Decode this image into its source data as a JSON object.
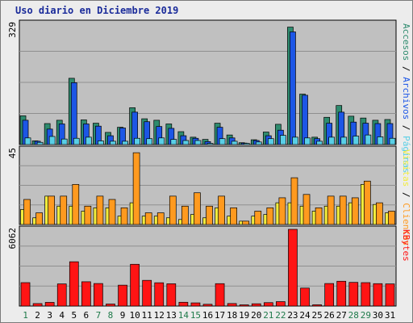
{
  "chart_data": {
    "type": "bar",
    "title": "Uso diario en Diciembre 2019",
    "categories": [
      "1",
      "2",
      "3",
      "4",
      "5",
      "6",
      "7",
      "8",
      "9",
      "10",
      "11",
      "12",
      "13",
      "14",
      "15",
      "16",
      "17",
      "18",
      "19",
      "20",
      "21",
      "22",
      "23",
      "24",
      "25",
      "26",
      "27",
      "28",
      "29",
      "30",
      "31"
    ],
    "weekend_days": [
      1,
      7,
      8,
      14,
      15,
      21,
      22,
      28,
      29
    ],
    "panels": [
      {
        "id": "hits",
        "ymax_label": "329",
        "ymax": 329,
        "series": [
          {
            "name": "Accesos",
            "color": "#2e8b6e",
            "values": [
              78,
              10,
              57,
              66,
              180,
              67,
              58,
              33,
              47,
              100,
              70,
              66,
              56,
              35,
              20,
              14,
              58,
              26,
              5,
              13,
              34,
              55,
              319,
              137,
              20,
              74,
              106,
              77,
              72,
              66,
              68
            ]
          },
          {
            "name": "Archivos",
            "color": "#1c56e6",
            "values": [
              66,
              9,
              42,
              56,
              168,
              56,
              50,
              24,
              45,
              88,
              62,
              49,
              44,
              24,
              17,
              8,
              47,
              18,
              4,
              11,
              24,
              39,
              306,
              134,
              16,
              58,
              88,
              61,
              58,
              57,
              57
            ]
          },
          {
            "name": "Páginas",
            "color": "#59cfe6",
            "values": [
              18,
              6,
              22,
              15,
              17,
              20,
              10,
              9,
              9,
              17,
              16,
              18,
              14,
              11,
              11,
              3,
              16,
              9,
              2,
              7,
              16,
              25,
              20,
              18,
              9,
              20,
              20,
              23,
              26,
              21,
              17
            ]
          }
        ]
      },
      {
        "id": "visits",
        "ymax_label": "45",
        "ymax": 45,
        "series": [
          {
            "name": "Visitas",
            "color": "#f2ec3d",
            "values": [
              9,
              4,
              17,
              11,
              11,
              8,
              10,
              10,
              5,
              13,
              5,
              5,
              4,
              3,
              6,
              4,
              10,
              5,
              2,
              5,
              6,
              13,
              13,
              11,
              8,
              11,
              11,
              13,
              24,
              12,
              7
            ]
          },
          {
            "name": "Clientes",
            "color": "#ff9a1f",
            "values": [
              15,
              7,
              17,
              17,
              24,
              11,
              17,
              15,
              10,
              43,
              7,
              7,
              17,
              11,
              19,
              11,
              17,
              10,
              2,
              8,
              10,
              16,
              28,
              18,
              10,
              17,
              17,
              16,
              26,
              13,
              8
            ]
          }
        ]
      },
      {
        "id": "kbytes",
        "ymax_label": "6062",
        "ymax": 6062,
        "series": [
          {
            "name": "KBytes",
            "color": "#ff1414",
            "values": [
              1850,
              195,
              290,
              1750,
              3500,
              1920,
              1780,
              160,
              1650,
              3300,
              2030,
              1840,
              1760,
              300,
              250,
              140,
              1770,
              200,
              50,
              180,
              270,
              350,
              6062,
              1420,
              100,
              1780,
              1960,
              1870,
              1850,
              1770,
              1750
            ]
          }
        ]
      }
    ],
    "legend_right": [
      {
        "panel": "hits",
        "items": [
          {
            "text": "Accesos",
            "color": "#2e8b6e"
          },
          {
            "text": " / ",
            "color": "#000000"
          },
          {
            "text": "Archivos",
            "color": "#1c56e6"
          },
          {
            "text": " / ",
            "color": "#000000"
          },
          {
            "text": "Páginas",
            "color": "#59cfe6"
          }
        ]
      },
      {
        "panel": "visits",
        "items": [
          {
            "text": "Visitas",
            "color": "#f2ec3d"
          },
          {
            "text": " / ",
            "color": "#000000"
          },
          {
            "text": "Clientes",
            "color": "#ff9a1f"
          }
        ]
      },
      {
        "panel": "kbytes",
        "items": [
          {
            "text": "KBytes",
            "color": "#ff1414"
          }
        ]
      }
    ],
    "colors": {
      "plot_bg": "#c0c0c0",
      "grid": "#8f8f8f",
      "axis": "#000000",
      "day_weekday": "#000000",
      "day_weekend": "#1f7a4a"
    },
    "grid": true
  }
}
